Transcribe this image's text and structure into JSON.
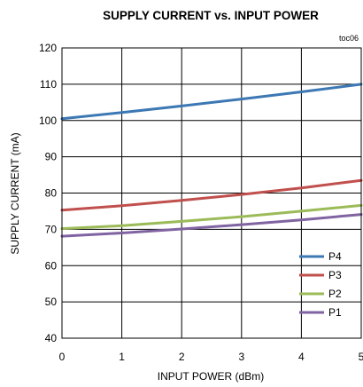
{
  "chart_data": {
    "type": "line",
    "title": "SUPPLY CURRENT vs. INPUT POWER",
    "annotation": "toc06",
    "xlabel": "INPUT POWER (dBm)",
    "ylabel": "SUPPLY CURRENT (mA)",
    "xlim": [
      0,
      5
    ],
    "ylim": [
      40,
      120
    ],
    "x_ticks": [
      0,
      1,
      2,
      3,
      4,
      5
    ],
    "y_ticks": [
      40,
      50,
      60,
      70,
      80,
      90,
      100,
      110,
      120
    ],
    "grid": true,
    "legend_position": "bottom-right",
    "series": [
      {
        "name": "P4",
        "color": "#3c78b4",
        "x": [
          0,
          1,
          2,
          3,
          4,
          5
        ],
        "y": [
          100.5,
          102.2,
          104.0,
          105.9,
          107.9,
          110.0
        ]
      },
      {
        "name": "P3",
        "color": "#c0504d",
        "x": [
          0,
          1,
          2,
          3,
          4,
          5
        ],
        "y": [
          75.3,
          76.5,
          78.0,
          79.6,
          81.4,
          83.5
        ]
      },
      {
        "name": "P2",
        "color": "#9bbb59",
        "x": [
          0,
          1,
          2,
          3,
          4,
          5
        ],
        "y": [
          70.2,
          71.0,
          72.2,
          73.5,
          75.0,
          76.6
        ]
      },
      {
        "name": "P1",
        "color": "#8064a2",
        "x": [
          0,
          1,
          2,
          3,
          4,
          5
        ],
        "y": [
          68.1,
          69.0,
          70.1,
          71.3,
          72.6,
          74.1
        ]
      }
    ]
  }
}
